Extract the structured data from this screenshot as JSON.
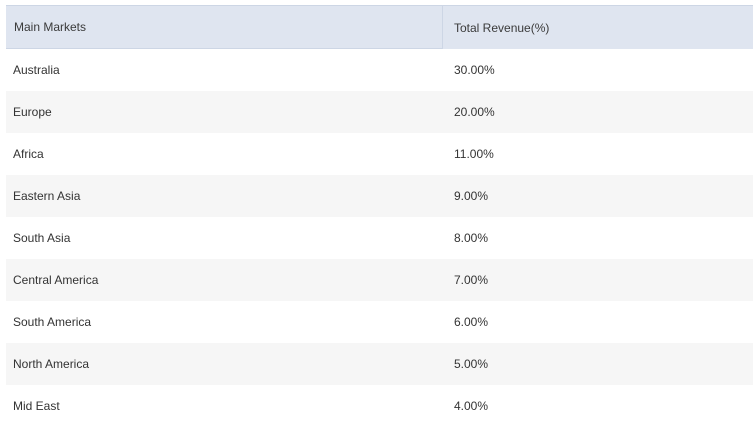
{
  "table": {
    "headers": [
      "Main Markets",
      "Total Revenue(%)"
    ],
    "rows": [
      {
        "market": "Australia",
        "revenue": "30.00%"
      },
      {
        "market": "Europe",
        "revenue": "20.00%"
      },
      {
        "market": "Africa",
        "revenue": "11.00%"
      },
      {
        "market": "Eastern Asia",
        "revenue": "9.00%"
      },
      {
        "market": "South Asia",
        "revenue": "8.00%"
      },
      {
        "market": "Central America",
        "revenue": "7.00%"
      },
      {
        "market": "South America",
        "revenue": "6.00%"
      },
      {
        "market": "North America",
        "revenue": "5.00%"
      },
      {
        "market": "Mid East",
        "revenue": "4.00%"
      }
    ]
  }
}
